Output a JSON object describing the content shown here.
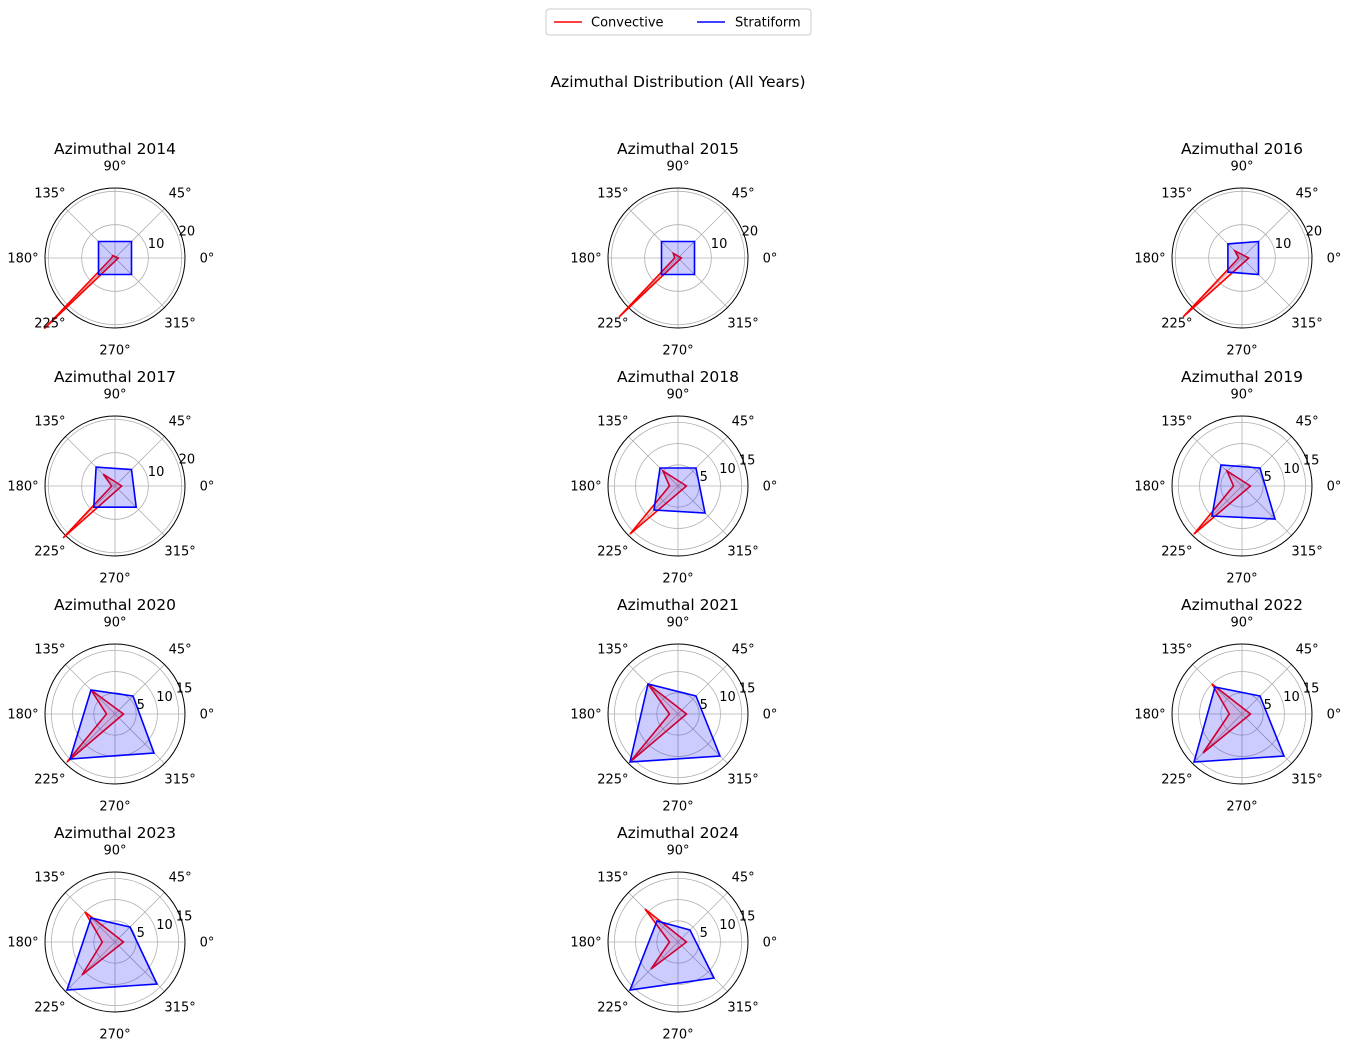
{
  "figure": {
    "suptitle": "Azimuthal Distribution (All Years)",
    "legend": {
      "placement": "top-center",
      "entries": [
        {
          "name": "Convective",
          "color": "#ff0000"
        },
        {
          "name": "Stratiform",
          "color": "#0000ff"
        }
      ]
    },
    "colors": {
      "convective": "#ff0000",
      "stratiform": "#0000ff",
      "fill": "#0000ff",
      "fill_opacity": 0.2
    }
  },
  "chart_data": [
    {
      "type": "polar-line",
      "title": "Azimuthal 2014",
      "theta_ticks": [
        "0°",
        "45°",
        "90°",
        "135°",
        "180°",
        "225°",
        "270°",
        "315°"
      ],
      "r_ticks": [
        10,
        20
      ],
      "rmax": 21,
      "theta": [
        0,
        90,
        180,
        270
      ],
      "series": [
        {
          "name": "Convective",
          "values": [
            1,
            1,
            1,
            30
          ],
          "theta": [
            0,
            135,
            180,
            225
          ]
        },
        {
          "name": "Stratiform",
          "values": [
            7,
            7,
            7,
            7
          ],
          "theta": [
            45,
            135,
            225,
            315
          ]
        }
      ]
    },
    {
      "type": "polar-line",
      "title": "Azimuthal 2015",
      "theta_ticks": [
        "0°",
        "45°",
        "90°",
        "135°",
        "180°",
        "225°",
        "270°",
        "315°"
      ],
      "r_ticks": [
        10,
        20
      ],
      "rmax": 21,
      "series": [
        {
          "name": "Convective",
          "values": [
            1,
            2,
            1,
            25
          ],
          "theta": [
            0,
            135,
            180,
            225
          ]
        },
        {
          "name": "Stratiform",
          "values": [
            7,
            7,
            7,
            7
          ],
          "theta": [
            45,
            135,
            225,
            315
          ]
        }
      ]
    },
    {
      "type": "polar-line",
      "title": "Azimuthal 2016",
      "theta_ticks": [
        "0°",
        "45°",
        "90°",
        "135°",
        "180°",
        "225°",
        "270°",
        "315°"
      ],
      "r_ticks": [
        10,
        20
      ],
      "rmax": 21,
      "series": [
        {
          "name": "Convective",
          "values": [
            2,
            3,
            1,
            25
          ],
          "theta": [
            0,
            135,
            180,
            225
          ]
        },
        {
          "name": "Stratiform",
          "values": [
            7,
            6,
            6,
            7
          ],
          "theta": [
            45,
            135,
            225,
            315
          ]
        }
      ]
    },
    {
      "type": "polar-line",
      "title": "Azimuthal 2017",
      "theta_ticks": [
        "0°",
        "45°",
        "90°",
        "135°",
        "180°",
        "225°",
        "270°",
        "315°"
      ],
      "r_ticks": [
        10,
        20
      ],
      "rmax": 21,
      "series": [
        {
          "name": "Convective",
          "values": [
            2,
            5,
            1,
            22
          ],
          "theta": [
            0,
            135,
            180,
            225
          ]
        },
        {
          "name": "Stratiform",
          "values": [
            7,
            8,
            9,
            9
          ],
          "theta": [
            45,
            135,
            225,
            315
          ]
        }
      ]
    },
    {
      "type": "polar-line",
      "title": "Azimuthal 2018",
      "theta_ticks": [
        "0°",
        "45°",
        "90°",
        "135°",
        "180°",
        "225°",
        "270°",
        "315°"
      ],
      "r_ticks": [
        5,
        10,
        15
      ],
      "rmax": 16.5,
      "series": [
        {
          "name": "Convective",
          "values": [
            2,
            5,
            2,
            16
          ],
          "theta": [
            0,
            135,
            180,
            225
          ]
        },
        {
          "name": "Stratiform",
          "values": [
            6,
            6,
            8,
            9
          ],
          "theta": [
            45,
            135,
            225,
            315
          ]
        }
      ]
    },
    {
      "type": "polar-line",
      "title": "Azimuthal 2019",
      "theta_ticks": [
        "0°",
        "45°",
        "90°",
        "135°",
        "180°",
        "225°",
        "270°",
        "315°"
      ],
      "r_ticks": [
        5,
        10,
        15
      ],
      "rmax": 16.5,
      "series": [
        {
          "name": "Convective",
          "values": [
            2,
            5,
            2,
            16
          ],
          "theta": [
            0,
            135,
            180,
            225
          ]
        },
        {
          "name": "Stratiform",
          "values": [
            6,
            7,
            10,
            11
          ],
          "theta": [
            45,
            135,
            225,
            315
          ]
        }
      ]
    },
    {
      "type": "polar-line",
      "title": "Azimuthal 2020",
      "theta_ticks": [
        "0°",
        "45°",
        "90°",
        "135°",
        "180°",
        "225°",
        "270°",
        "315°"
      ],
      "r_ticks": [
        5,
        10,
        15
      ],
      "rmax": 16.5,
      "series": [
        {
          "name": "Convective",
          "values": [
            2,
            8,
            2,
            16
          ],
          "theta": [
            0,
            135,
            180,
            225
          ]
        },
        {
          "name": "Stratiform",
          "values": [
            6,
            8,
            15,
            13
          ],
          "theta": [
            45,
            135,
            225,
            315
          ]
        }
      ]
    },
    {
      "type": "polar-line",
      "title": "Azimuthal 2021",
      "theta_ticks": [
        "0°",
        "45°",
        "90°",
        "135°",
        "180°",
        "225°",
        "270°",
        "315°"
      ],
      "r_ticks": [
        5,
        10,
        15
      ],
      "rmax": 16.5,
      "series": [
        {
          "name": "Convective",
          "values": [
            2,
            10,
            2,
            16
          ],
          "theta": [
            0,
            135,
            180,
            225
          ]
        },
        {
          "name": "Stratiform",
          "values": [
            6,
            10,
            16,
            14
          ],
          "theta": [
            45,
            135,
            225,
            315
          ]
        }
      ]
    },
    {
      "type": "polar-line",
      "title": "Azimuthal 2022",
      "theta_ticks": [
        "0°",
        "45°",
        "90°",
        "135°",
        "180°",
        "225°",
        "270°",
        "315°"
      ],
      "r_ticks": [
        5,
        10,
        15
      ],
      "rmax": 16.5,
      "series": [
        {
          "name": "Convective",
          "values": [
            2,
            10,
            3,
            13
          ],
          "theta": [
            0,
            135,
            180,
            225
          ]
        },
        {
          "name": "Stratiform",
          "values": [
            6,
            9,
            16,
            14
          ],
          "theta": [
            45,
            135,
            225,
            315
          ]
        }
      ]
    },
    {
      "type": "polar-line",
      "title": "Azimuthal 2023",
      "theta_ticks": [
        "0°",
        "45°",
        "90°",
        "135°",
        "180°",
        "225°",
        "270°",
        "315°"
      ],
      "r_ticks": [
        5,
        10,
        15
      ],
      "rmax": 16.5,
      "series": [
        {
          "name": "Convective",
          "values": [
            2,
            10,
            3,
            11
          ],
          "theta": [
            0,
            135,
            180,
            225
          ]
        },
        {
          "name": "Stratiform",
          "values": [
            5,
            8,
            16,
            14
          ],
          "theta": [
            45,
            135,
            225,
            315
          ]
        }
      ]
    },
    {
      "type": "polar-line",
      "title": "Azimuthal 2024",
      "theta_ticks": [
        "0°",
        "45°",
        "90°",
        "135°",
        "180°",
        "225°",
        "270°",
        "315°"
      ],
      "r_ticks": [
        5,
        10,
        15
      ],
      "rmax": 16.5,
      "series": [
        {
          "name": "Convective",
          "values": [
            2,
            11,
            2,
            9
          ],
          "theta": [
            0,
            135,
            180,
            225
          ]
        },
        {
          "name": "Stratiform",
          "values": [
            4,
            7,
            16,
            12
          ],
          "theta": [
            45,
            135,
            225,
            315
          ]
        }
      ]
    }
  ]
}
